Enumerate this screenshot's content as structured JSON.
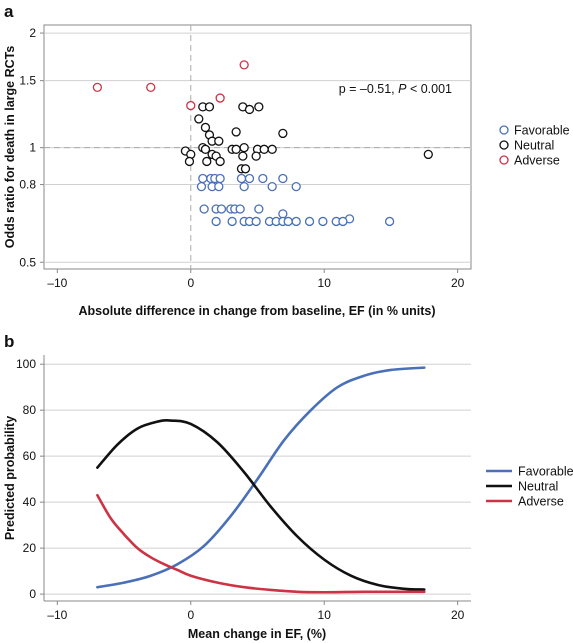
{
  "chart_data": [
    {
      "panel": "a",
      "type": "scatter",
      "xlabel": "Absolute difference in change from baseline, EF (in % units)",
      "ylabel": "Odds ratio for death in large RCTs",
      "xlim": [
        -11,
        21
      ],
      "ylim": [
        0.48,
        2.1
      ],
      "y_scale": "log",
      "xticks": [
        -10,
        0,
        10,
        20
      ],
      "yticks": [
        0.5,
        0.8,
        1,
        1.5,
        2
      ],
      "ytick_labels": [
        "0.5",
        "0.8",
        "1",
        "1.5",
        "2"
      ],
      "reference_lines": {
        "x": 0,
        "y": 1
      },
      "annotation": {
        "prefix": "p = –0.51, ",
        "italic": "P",
        "suffix": " < 0.001"
      },
      "legend_position": "right",
      "colors": {
        "Favorable": "#4a70b7",
        "Neutral": "#111111",
        "Adverse": "#cc3344"
      },
      "series": [
        {
          "name": "Favorable",
          "points": [
            [
              0.9,
              0.83
            ],
            [
              1.5,
              0.83
            ],
            [
              1.8,
              0.83
            ],
            [
              2.2,
              0.83
            ],
            [
              3.8,
              0.83
            ],
            [
              4.4,
              0.83
            ],
            [
              5.4,
              0.83
            ],
            [
              6.9,
              0.83
            ],
            [
              0.8,
              0.79
            ],
            [
              1.6,
              0.79
            ],
            [
              2.1,
              0.79
            ],
            [
              4.0,
              0.79
            ],
            [
              6.1,
              0.79
            ],
            [
              7.9,
              0.79
            ],
            [
              1.0,
              0.69
            ],
            [
              1.9,
              0.69
            ],
            [
              2.3,
              0.69
            ],
            [
              3.0,
              0.69
            ],
            [
              3.3,
              0.69
            ],
            [
              3.7,
              0.69
            ],
            [
              5.1,
              0.69
            ],
            [
              6.9,
              0.67
            ],
            [
              11.9,
              0.65
            ],
            [
              1.9,
              0.64
            ],
            [
              3.1,
              0.64
            ],
            [
              4.0,
              0.64
            ],
            [
              4.4,
              0.64
            ],
            [
              4.9,
              0.64
            ],
            [
              5.9,
              0.64
            ],
            [
              6.4,
              0.64
            ],
            [
              6.9,
              0.64
            ],
            [
              7.3,
              0.64
            ],
            [
              7.9,
              0.64
            ],
            [
              8.9,
              0.64
            ],
            [
              9.9,
              0.64
            ],
            [
              10.9,
              0.64
            ],
            [
              11.4,
              0.64
            ],
            [
              14.9,
              0.64
            ]
          ]
        },
        {
          "name": "Neutral",
          "points": [
            [
              0.9,
              1.28
            ],
            [
              1.4,
              1.28
            ],
            [
              3.9,
              1.28
            ],
            [
              4.4,
              1.26
            ],
            [
              5.1,
              1.28
            ],
            [
              0.6,
              1.19
            ],
            [
              1.1,
              1.13
            ],
            [
              1.4,
              1.08
            ],
            [
              3.4,
              1.1
            ],
            [
              6.9,
              1.09
            ],
            [
              1.6,
              1.04
            ],
            [
              2.1,
              1.04
            ],
            [
              0.9,
              1.0
            ],
            [
              1.1,
              0.99
            ],
            [
              3.1,
              0.99
            ],
            [
              3.4,
              0.99
            ],
            [
              4.0,
              1.0
            ],
            [
              5.0,
              0.99
            ],
            [
              5.5,
              0.99
            ],
            [
              6.1,
              0.99
            ],
            [
              -0.4,
              0.98
            ],
            [
              0.0,
              0.96
            ],
            [
              1.6,
              0.96
            ],
            [
              1.9,
              0.95
            ],
            [
              3.9,
              0.95
            ],
            [
              4.9,
              0.95
            ],
            [
              -0.1,
              0.92
            ],
            [
              1.2,
              0.92
            ],
            [
              2.2,
              0.92
            ],
            [
              3.8,
              0.88
            ],
            [
              4.1,
              0.88
            ],
            [
              17.8,
              0.96
            ]
          ]
        },
        {
          "name": "Adverse",
          "points": [
            [
              -7.0,
              1.44
            ],
            [
              -3.0,
              1.44
            ],
            [
              0.0,
              1.29
            ],
            [
              2.2,
              1.35
            ],
            [
              4.0,
              1.65
            ]
          ]
        }
      ]
    },
    {
      "panel": "b",
      "type": "line",
      "xlabel": "Mean change in EF, (%)",
      "ylabel": "Predicted probability",
      "xlim": [
        -11,
        21
      ],
      "ylim": [
        -3,
        104
      ],
      "xticks": [
        -10,
        0,
        10,
        20
      ],
      "yticks": [
        0,
        20,
        40,
        60,
        80,
        100
      ],
      "legend_position": "right",
      "series": [
        {
          "name": "Favorable",
          "color": "#4a70b7",
          "x": [
            -7,
            -5,
            -3,
            -1,
            1,
            3,
            5,
            7,
            9,
            11,
            13,
            15,
            17.5
          ],
          "y": [
            3,
            5,
            8,
            13,
            21,
            34,
            50,
            67,
            80,
            90,
            95,
            97.5,
            98.5
          ]
        },
        {
          "name": "Neutral",
          "color": "#111111",
          "x": [
            -7,
            -5.5,
            -4,
            -2.5,
            -1.5,
            0,
            2,
            4,
            6,
            8,
            10,
            12,
            14,
            16,
            17.5
          ],
          "y": [
            55,
            65,
            72,
            75,
            75.5,
            74,
            66,
            53,
            38,
            25,
            15,
            8,
            4,
            2.3,
            2
          ]
        },
        {
          "name": "Adverse",
          "color": "#cc3344",
          "x": [
            -7,
            -6,
            -5,
            -4,
            -3,
            -2,
            -1,
            0,
            2,
            4,
            6,
            8,
            10,
            13,
            17.5
          ],
          "y": [
            43,
            33,
            26,
            20,
            16,
            13,
            10.5,
            8,
            5,
            3,
            1.8,
            1,
            0.8,
            1,
            1
          ]
        }
      ]
    }
  ]
}
